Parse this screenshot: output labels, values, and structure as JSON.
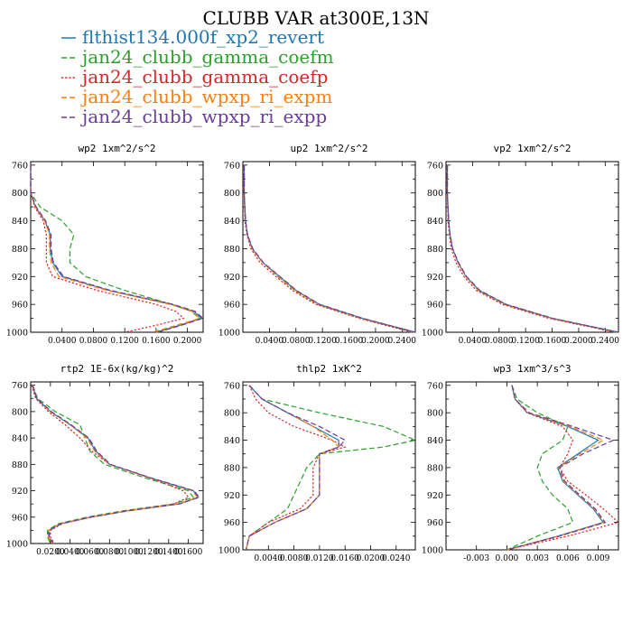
{
  "figure_title": "CLUBB VAR at300E,13N",
  "legend": [
    {
      "label": "flthist134.000f_xp2_revert",
      "color": "#1f77b4",
      "dash": "solid"
    },
    {
      "label": "jan24_clubb_gamma_coefm",
      "color": "#2ca02c",
      "dash": "dashed"
    },
    {
      "label": "jan24_clubb_gamma_coefp",
      "color": "#d62728",
      "dash": "dotted"
    },
    {
      "label": "jan24_clubb_wpxp_ri_expm",
      "color": "#ff7f0e",
      "dash": "dashed"
    },
    {
      "label": "jan24_clubb_wpxp_ri_expp",
      "color": "#6a3d9a",
      "dash": "dashed"
    }
  ],
  "chart_data": [
    {
      "type": "line",
      "title": "wp2   1xm^2/s^2",
      "xlim": [
        0.0,
        0.22
      ],
      "ylim": [
        1000,
        755
      ],
      "xticks": [
        0.04,
        0.08,
        0.12,
        0.16,
        0.2
      ],
      "xtick_labels": [
        "0.0400",
        "0.0800",
        "0.1200",
        "0.1600",
        "0.2000"
      ],
      "yticks": [
        760,
        800,
        840,
        880,
        920,
        960,
        1000
      ],
      "ytick_labels": [
        "760",
        "800",
        "840",
        "880",
        "920",
        "960",
        "1000"
      ],
      "y": [
        760,
        800,
        820,
        840,
        860,
        880,
        900,
        920,
        940,
        960,
        970,
        980,
        990,
        1000
      ],
      "series": [
        {
          "x": [
            0.0,
            0.0,
            0.006,
            0.018,
            0.025,
            0.025,
            0.028,
            0.04,
            0.1,
            0.18,
            0.208,
            0.218,
            0.19,
            0.16
          ]
        },
        {
          "x": [
            0.0,
            0.0,
            0.012,
            0.04,
            0.055,
            0.05,
            0.05,
            0.07,
            0.12,
            0.18,
            0.205,
            0.215,
            0.19,
            0.16
          ]
        },
        {
          "x": [
            0.0,
            0.0,
            0.005,
            0.016,
            0.02,
            0.02,
            0.02,
            0.028,
            0.085,
            0.16,
            0.185,
            0.195,
            0.16,
            0.12
          ]
        },
        {
          "x": [
            0.0,
            0.0,
            0.006,
            0.018,
            0.024,
            0.024,
            0.026,
            0.036,
            0.098,
            0.178,
            0.206,
            0.216,
            0.186,
            0.155
          ]
        },
        {
          "x": [
            0.0,
            0.0,
            0.007,
            0.019,
            0.026,
            0.026,
            0.029,
            0.042,
            0.102,
            0.182,
            0.21,
            0.22,
            0.192,
            0.162
          ]
        }
      ]
    },
    {
      "type": "line",
      "title": "up2   1xm^2/s^2",
      "xlim": [
        0.0,
        0.26
      ],
      "ylim": [
        1000,
        755
      ],
      "xticks": [
        0.04,
        0.08,
        0.12,
        0.16,
        0.2,
        0.24
      ],
      "xtick_labels": [
        "0.0400",
        "0.0800",
        "0.1200",
        "0.1600",
        "0.2000",
        "0.2400"
      ],
      "yticks": [
        760,
        800,
        840,
        880,
        920,
        960,
        1000
      ],
      "ytick_labels": [
        "760",
        "800",
        "840",
        "880",
        "920",
        "960",
        "1000"
      ],
      "y": [
        760,
        800,
        840,
        860,
        880,
        900,
        920,
        940,
        960,
        980,
        1000
      ],
      "series": [
        {
          "x": [
            0.002,
            0.002,
            0.004,
            0.007,
            0.014,
            0.03,
            0.055,
            0.08,
            0.115,
            0.18,
            0.26
          ]
        },
        {
          "x": [
            0.002,
            0.002,
            0.004,
            0.007,
            0.014,
            0.03,
            0.053,
            0.078,
            0.113,
            0.178,
            0.258
          ]
        },
        {
          "x": [
            0.002,
            0.002,
            0.003,
            0.006,
            0.012,
            0.026,
            0.05,
            0.075,
            0.11,
            0.175,
            0.255
          ]
        },
        {
          "x": [
            0.002,
            0.002,
            0.004,
            0.007,
            0.014,
            0.03,
            0.054,
            0.079,
            0.114,
            0.179,
            0.259
          ]
        },
        {
          "x": [
            0.002,
            0.002,
            0.004,
            0.007,
            0.015,
            0.031,
            0.056,
            0.081,
            0.116,
            0.181,
            0.26
          ]
        }
      ]
    },
    {
      "type": "line",
      "title": "vp2   1xm^2/s^2",
      "xlim": [
        0.0,
        0.26
      ],
      "ylim": [
        1000,
        755
      ],
      "xticks": [
        0.04,
        0.08,
        0.12,
        0.16,
        0.2,
        0.24
      ],
      "xtick_labels": [
        "0.0400",
        "0.0800",
        "0.1200",
        "0.1600",
        "0.2000",
        "0.2400"
      ],
      "yticks": [
        760,
        800,
        840,
        880,
        920,
        960,
        1000
      ],
      "ytick_labels": [
        "760",
        "800",
        "840",
        "880",
        "920",
        "960",
        "1000"
      ],
      "y": [
        760,
        800,
        840,
        860,
        880,
        900,
        920,
        940,
        960,
        980,
        1000
      ],
      "series": [
        {
          "x": [
            0.002,
            0.002,
            0.004,
            0.006,
            0.01,
            0.018,
            0.03,
            0.05,
            0.09,
            0.16,
            0.26
          ]
        },
        {
          "x": [
            0.002,
            0.002,
            0.004,
            0.006,
            0.01,
            0.018,
            0.03,
            0.049,
            0.088,
            0.158,
            0.258
          ]
        },
        {
          "x": [
            0.002,
            0.002,
            0.003,
            0.005,
            0.008,
            0.015,
            0.027,
            0.046,
            0.085,
            0.155,
            0.255
          ]
        },
        {
          "x": [
            0.002,
            0.002,
            0.004,
            0.006,
            0.01,
            0.018,
            0.03,
            0.05,
            0.089,
            0.159,
            0.259
          ]
        },
        {
          "x": [
            0.002,
            0.002,
            0.004,
            0.006,
            0.01,
            0.019,
            0.031,
            0.051,
            0.091,
            0.161,
            0.26
          ]
        }
      ]
    },
    {
      "type": "line",
      "title": "rtp2   1E-6x(kg/kg)^2",
      "xlim": [
        0.0,
        0.175
      ],
      "ylim": [
        1000,
        755
      ],
      "xticks": [
        0.02,
        0.04,
        0.06,
        0.08,
        0.1,
        0.12,
        0.14,
        0.16
      ],
      "xtick_labels": [
        "0.0200",
        "0.0400",
        "0.0600",
        "0.0800",
        "0.1000",
        "0.1200",
        "0.1400",
        "0.1600"
      ],
      "yticks": [
        760,
        800,
        840,
        880,
        920,
        960,
        1000
      ],
      "ytick_labels": [
        "760",
        "800",
        "840",
        "880",
        "920",
        "960",
        "1000"
      ],
      "y": [
        760,
        780,
        800,
        820,
        840,
        860,
        880,
        900,
        920,
        930,
        940,
        950,
        960,
        970,
        980,
        990,
        1000
      ],
      "series": [
        {
          "x": [
            0.002,
            0.006,
            0.02,
            0.04,
            0.058,
            0.066,
            0.08,
            0.12,
            0.165,
            0.17,
            0.15,
            0.1,
            0.06,
            0.03,
            0.018,
            0.018,
            0.022
          ]
        },
        {
          "x": [
            0.002,
            0.007,
            0.025,
            0.05,
            0.055,
            0.06,
            0.075,
            0.115,
            0.16,
            0.165,
            0.145,
            0.095,
            0.057,
            0.028,
            0.017,
            0.017,
            0.02
          ]
        },
        {
          "x": [
            0.001,
            0.005,
            0.018,
            0.035,
            0.05,
            0.062,
            0.08,
            0.12,
            0.155,
            0.16,
            0.145,
            0.1,
            0.062,
            0.032,
            0.02,
            0.02,
            0.024
          ]
        },
        {
          "x": [
            0.002,
            0.006,
            0.02,
            0.04,
            0.057,
            0.065,
            0.08,
            0.12,
            0.164,
            0.169,
            0.149,
            0.1,
            0.06,
            0.03,
            0.018,
            0.018,
            0.022
          ]
        },
        {
          "x": [
            0.002,
            0.006,
            0.021,
            0.041,
            0.059,
            0.067,
            0.081,
            0.121,
            0.166,
            0.171,
            0.151,
            0.101,
            0.061,
            0.031,
            0.019,
            0.019,
            0.023
          ]
        }
      ]
    },
    {
      "type": "line",
      "title": "thlp2   1xK^2",
      "xlim": [
        0.0,
        0.027
      ],
      "ylim": [
        1000,
        755
      ],
      "xticks": [
        0.004,
        0.008,
        0.012,
        0.016,
        0.02,
        0.024
      ],
      "xtick_labels": [
        "0.0040",
        "0.0080",
        "0.0120",
        "0.0160",
        "0.0200",
        "0.0240"
      ],
      "yticks": [
        760,
        800,
        840,
        880,
        920,
        960,
        1000
      ],
      "ytick_labels": [
        "760",
        "800",
        "840",
        "880",
        "920",
        "960",
        "1000"
      ],
      "y": [
        760,
        780,
        800,
        820,
        840,
        850,
        860,
        880,
        900,
        920,
        940,
        960,
        980,
        1000
      ],
      "series": [
        {
          "x": [
            0.001,
            0.003,
            0.007,
            0.011,
            0.015,
            0.015,
            0.012,
            0.012,
            0.012,
            0.012,
            0.01,
            0.005,
            0.001,
            0.0005
          ]
        },
        {
          "x": [
            0.001,
            0.003,
            0.012,
            0.022,
            0.027,
            0.022,
            0.012,
            0.01,
            0.009,
            0.008,
            0.007,
            0.004,
            0.001,
            0.0005
          ]
        },
        {
          "x": [
            0.001,
            0.002,
            0.004,
            0.008,
            0.014,
            0.016,
            0.012,
            0.011,
            0.011,
            0.011,
            0.009,
            0.004,
            0.001,
            0.0005
          ]
        },
        {
          "x": [
            0.001,
            0.003,
            0.007,
            0.011,
            0.014,
            0.015,
            0.012,
            0.012,
            0.012,
            0.012,
            0.01,
            0.005,
            0.001,
            0.0005
          ]
        },
        {
          "x": [
            0.001,
            0.003,
            0.007,
            0.012,
            0.016,
            0.015,
            0.012,
            0.012,
            0.012,
            0.012,
            0.01,
            0.005,
            0.001,
            0.0005
          ]
        }
      ]
    },
    {
      "type": "line",
      "title": "wp3   1xm^3/s^3",
      "xlim": [
        -0.006,
        0.011
      ],
      "ylim": [
        1000,
        755
      ],
      "xticks": [
        -0.003,
        0.0,
        0.003,
        0.006,
        0.009
      ],
      "xtick_labels": [
        "-0.003",
        "0.000",
        "0.003",
        "0.006",
        "0.009"
      ],
      "yticks": [
        760,
        800,
        840,
        880,
        920,
        960,
        1000
      ],
      "ytick_labels": [
        "760",
        "800",
        "840",
        "880",
        "920",
        "960",
        "1000"
      ],
      "y": [
        760,
        780,
        800,
        820,
        840,
        860,
        880,
        900,
        920,
        940,
        960,
        980,
        1000
      ],
      "series": [
        {
          "x": [
            0.0005,
            0.0008,
            0.002,
            0.006,
            0.009,
            0.007,
            0.005,
            0.0055,
            0.007,
            0.0085,
            0.0095,
            0.005,
            0.0
          ]
        },
        {
          "x": [
            0.0005,
            0.001,
            0.003,
            0.006,
            0.0055,
            0.0035,
            0.003,
            0.0035,
            0.0045,
            0.006,
            0.0065,
            0.003,
            0.0
          ]
        },
        {
          "x": [
            0.0005,
            0.0008,
            0.002,
            0.0055,
            0.0065,
            0.006,
            0.0052,
            0.006,
            0.0078,
            0.0095,
            0.011,
            0.006,
            0.0
          ]
        },
        {
          "x": [
            0.0005,
            0.0008,
            0.0021,
            0.0062,
            0.0095,
            0.0072,
            0.0051,
            0.0056,
            0.0071,
            0.0086,
            0.0096,
            0.0051,
            0.0
          ]
        },
        {
          "x": [
            0.0005,
            0.0008,
            0.0022,
            0.0065,
            0.0105,
            0.0075,
            0.0052,
            0.0057,
            0.0072,
            0.0087,
            0.0097,
            0.0052,
            0.0
          ]
        }
      ]
    }
  ]
}
